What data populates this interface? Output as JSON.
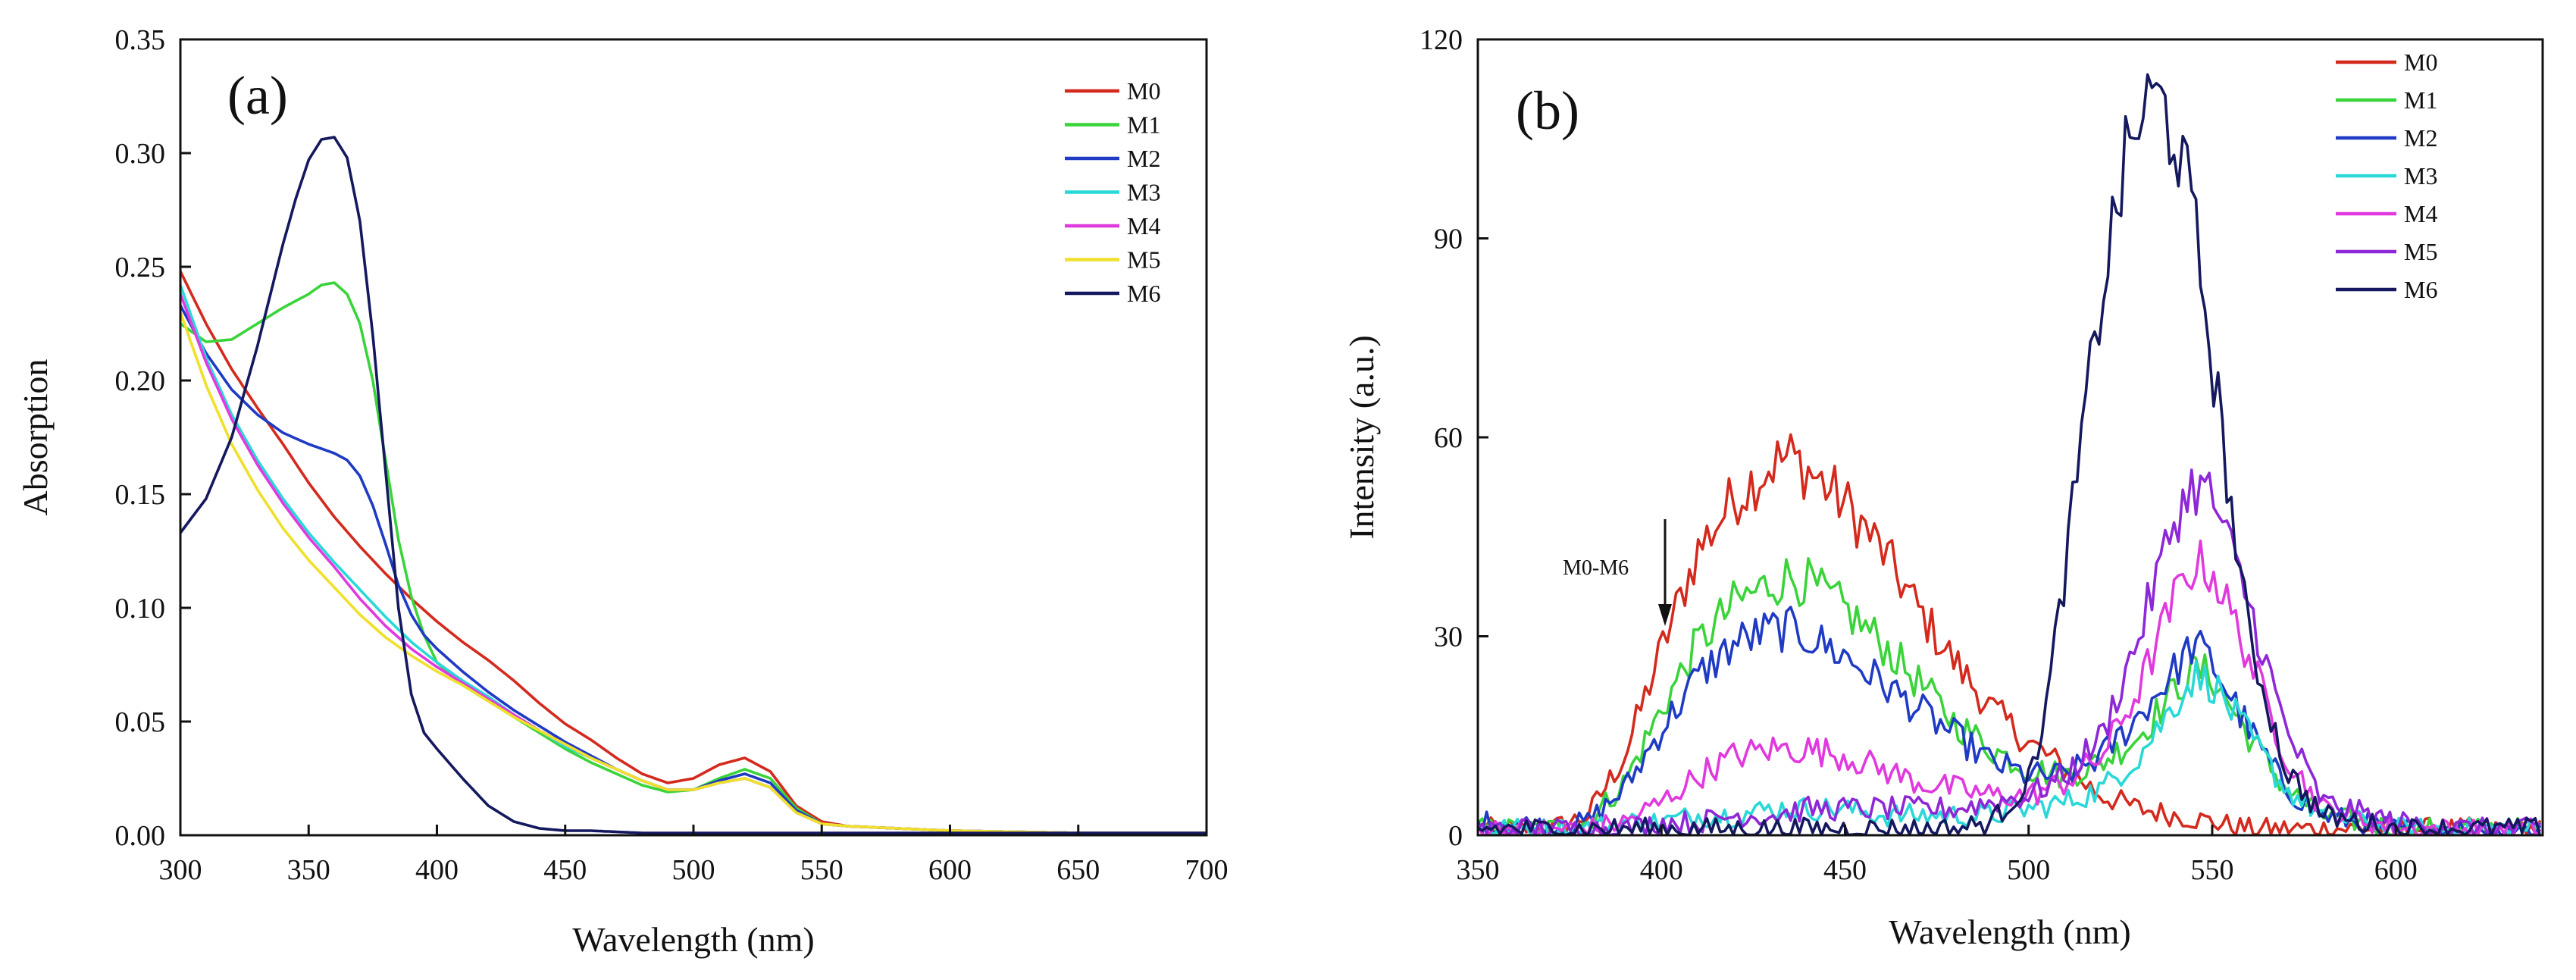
{
  "chart_data": [
    {
      "panel": "(a)",
      "type": "line",
      "title": "",
      "xlabel": "Wavelength (nm)",
      "ylabel": "Absorption",
      "xlim": [
        300,
        700
      ],
      "ylim": [
        0,
        0.35
      ],
      "xticks": [
        "300",
        "350",
        "400",
        "450",
        "500",
        "550",
        "600",
        "650",
        "700"
      ],
      "yticks": [
        "0.00",
        "0.05",
        "0.10",
        "0.15",
        "0.20",
        "0.25",
        "0.30",
        "0.35"
      ],
      "legend": "top-right",
      "grid": false,
      "series": [
        {
          "name": "M0",
          "color": "#d42a1e",
          "x": [
            300,
            310,
            320,
            330,
            340,
            350,
            360,
            370,
            380,
            390,
            400,
            410,
            420,
            430,
            440,
            450,
            460,
            470,
            480,
            490,
            500,
            510,
            520,
            530,
            540,
            550,
            560,
            580,
            600,
            650,
            700
          ],
          "y": [
            0.248,
            0.225,
            0.205,
            0.188,
            0.172,
            0.155,
            0.14,
            0.127,
            0.115,
            0.104,
            0.094,
            0.085,
            0.077,
            0.068,
            0.058,
            0.049,
            0.042,
            0.034,
            0.027,
            0.023,
            0.025,
            0.031,
            0.034,
            0.028,
            0.013,
            0.006,
            0.004,
            0.003,
            0.002,
            0.001,
            0.001
          ]
        },
        {
          "name": "M1",
          "color": "#3ad43a",
          "x": [
            300,
            310,
            320,
            330,
            340,
            350,
            355,
            360,
            365,
            370,
            375,
            380,
            385,
            390,
            395,
            400,
            410,
            420,
            430,
            440,
            450,
            460,
            470,
            480,
            490,
            500,
            510,
            520,
            530,
            540,
            550,
            560,
            580,
            600,
            650,
            700
          ],
          "y": [
            0.225,
            0.217,
            0.218,
            0.225,
            0.232,
            0.238,
            0.242,
            0.243,
            0.238,
            0.225,
            0.2,
            0.165,
            0.13,
            0.105,
            0.088,
            0.076,
            0.066,
            0.059,
            0.052,
            0.045,
            0.038,
            0.032,
            0.027,
            0.022,
            0.019,
            0.02,
            0.025,
            0.029,
            0.025,
            0.012,
            0.005,
            0.004,
            0.003,
            0.002,
            0.001,
            0.001
          ]
        },
        {
          "name": "M2",
          "color": "#1f3bc4",
          "x": [
            300,
            310,
            320,
            330,
            340,
            350,
            360,
            365,
            370,
            375,
            380,
            385,
            390,
            395,
            400,
            410,
            420,
            430,
            440,
            450,
            460,
            470,
            480,
            490,
            500,
            510,
            520,
            530,
            540,
            550,
            560,
            580,
            600,
            650,
            700
          ],
          "y": [
            0.233,
            0.212,
            0.196,
            0.185,
            0.177,
            0.172,
            0.168,
            0.165,
            0.158,
            0.145,
            0.128,
            0.11,
            0.097,
            0.088,
            0.082,
            0.072,
            0.063,
            0.055,
            0.048,
            0.041,
            0.035,
            0.029,
            0.024,
            0.02,
            0.02,
            0.024,
            0.027,
            0.023,
            0.011,
            0.005,
            0.004,
            0.003,
            0.002,
            0.001,
            0.001
          ]
        },
        {
          "name": "M3",
          "color": "#2ad8d8",
          "x": [
            300,
            310,
            320,
            330,
            340,
            350,
            360,
            370,
            380,
            390,
            400,
            410,
            420,
            430,
            440,
            450,
            460,
            470,
            480,
            490,
            500,
            510,
            520,
            530,
            540,
            550,
            560,
            580,
            600,
            650,
            700
          ],
          "y": [
            0.242,
            0.21,
            0.185,
            0.165,
            0.148,
            0.133,
            0.12,
            0.108,
            0.096,
            0.085,
            0.076,
            0.068,
            0.061,
            0.053,
            0.046,
            0.039,
            0.034,
            0.029,
            0.024,
            0.02,
            0.02,
            0.023,
            0.025,
            0.021,
            0.01,
            0.005,
            0.004,
            0.003,
            0.002,
            0.001,
            0.001
          ]
        },
        {
          "name": "M4",
          "color": "#e03adf",
          "x": [
            300,
            310,
            320,
            330,
            340,
            350,
            360,
            370,
            380,
            390,
            400,
            410,
            420,
            430,
            440,
            450,
            460,
            470,
            480,
            490,
            500,
            510,
            520,
            530,
            540,
            550,
            560,
            580,
            600,
            650,
            700
          ],
          "y": [
            0.238,
            0.208,
            0.183,
            0.163,
            0.146,
            0.131,
            0.118,
            0.104,
            0.092,
            0.082,
            0.074,
            0.067,
            0.06,
            0.053,
            0.046,
            0.04,
            0.034,
            0.029,
            0.024,
            0.02,
            0.02,
            0.023,
            0.025,
            0.021,
            0.01,
            0.005,
            0.004,
            0.003,
            0.002,
            0.001,
            0.001
          ]
        },
        {
          "name": "M5",
          "color": "#f0e02a",
          "x": [
            300,
            310,
            320,
            330,
            340,
            350,
            360,
            370,
            380,
            390,
            400,
            410,
            420,
            430,
            440,
            450,
            460,
            470,
            480,
            490,
            500,
            510,
            520,
            530,
            540,
            550,
            560,
            580,
            600,
            650,
            700
          ],
          "y": [
            0.23,
            0.198,
            0.172,
            0.152,
            0.135,
            0.121,
            0.109,
            0.097,
            0.087,
            0.079,
            0.072,
            0.066,
            0.059,
            0.052,
            0.046,
            0.04,
            0.034,
            0.029,
            0.024,
            0.02,
            0.02,
            0.023,
            0.025,
            0.021,
            0.01,
            0.005,
            0.004,
            0.003,
            0.002,
            0.001,
            0.001
          ]
        },
        {
          "name": "M6",
          "color": "#14185e",
          "x": [
            300,
            310,
            320,
            330,
            340,
            345,
            350,
            355,
            360,
            365,
            370,
            375,
            380,
            385,
            390,
            395,
            400,
            410,
            420,
            430,
            440,
            450,
            460,
            480,
            500,
            550,
            600,
            650,
            700
          ],
          "y": [
            0.133,
            0.148,
            0.175,
            0.215,
            0.26,
            0.28,
            0.297,
            0.306,
            0.307,
            0.298,
            0.27,
            0.22,
            0.16,
            0.1,
            0.062,
            0.045,
            0.038,
            0.025,
            0.013,
            0.006,
            0.003,
            0.002,
            0.002,
            0.001,
            0.001,
            0.001,
            0.001,
            0.001,
            0.001
          ]
        }
      ]
    },
    {
      "panel": "(b)",
      "type": "line",
      "title": "",
      "xlabel": "Wavelength (nm)",
      "ylabel": "Intensity (a.u.)",
      "xlim": [
        350,
        640
      ],
      "ylim": [
        0,
        120
      ],
      "xticks": [
        "350",
        "400",
        "450",
        "500",
        "550",
        "600"
      ],
      "yticks": [
        "0",
        "30",
        "60",
        "90",
        "120"
      ],
      "legend": "top-right",
      "grid": false,
      "annotation": "M0-M6",
      "series": [
        {
          "name": "M0",
          "color": "#d42a1e",
          "x": [
            350,
            360,
            370,
            380,
            390,
            400,
            410,
            420,
            430,
            435,
            440,
            450,
            460,
            470,
            480,
            490,
            500,
            510,
            520,
            530,
            540,
            550,
            560,
            570,
            580,
            600,
            620,
            640
          ],
          "y": [
            1,
            1,
            1,
            3,
            12,
            28,
            43,
            51,
            56,
            57,
            55,
            50,
            43,
            34,
            26,
            19,
            14,
            10,
            6,
            4,
            3,
            2,
            1,
            1,
            1,
            1,
            1,
            1
          ]
        },
        {
          "name": "M1",
          "color": "#3ad43a",
          "x": [
            350,
            360,
            370,
            380,
            390,
            400,
            410,
            420,
            430,
            435,
            440,
            450,
            460,
            470,
            480,
            490,
            500,
            510,
            520,
            530,
            540,
            545,
            550,
            560,
            570,
            580,
            600,
            620,
            640
          ],
          "y": [
            1,
            1,
            1,
            2,
            8,
            19,
            29,
            35,
            38,
            39,
            38,
            34,
            29,
            23,
            17,
            13,
            10,
            9,
            11,
            15,
            22,
            25,
            24,
            15,
            7,
            3,
            1,
            1,
            1
          ]
        },
        {
          "name": "M2",
          "color": "#1f3bc4",
          "x": [
            350,
            360,
            370,
            380,
            390,
            400,
            410,
            420,
            430,
            435,
            440,
            450,
            460,
            470,
            480,
            490,
            500,
            510,
            520,
            530,
            540,
            545,
            550,
            560,
            570,
            580,
            600,
            620,
            640
          ],
          "y": [
            2,
            2,
            1,
            2,
            7,
            16,
            24,
            29,
            31,
            31,
            30,
            27,
            23,
            19,
            15,
            11,
            9,
            9,
            12,
            18,
            25,
            29,
            26,
            16,
            7,
            3,
            1,
            1,
            1
          ]
        },
        {
          "name": "M3",
          "color": "#2ad8d8",
          "x": [
            350,
            360,
            370,
            380,
            390,
            400,
            410,
            420,
            430,
            440,
            450,
            460,
            470,
            480,
            490,
            500,
            510,
            520,
            530,
            540,
            545,
            550,
            560,
            570,
            580,
            600,
            620,
            640
          ],
          "y": [
            1,
            1,
            1,
            1,
            2,
            2,
            3,
            3,
            4,
            4,
            4,
            3,
            3,
            3,
            3,
            4,
            5,
            7,
            12,
            20,
            24,
            23,
            15,
            7,
            3,
            1,
            1,
            1
          ]
        },
        {
          "name": "M4",
          "color": "#e03adf",
          "x": [
            350,
            360,
            370,
            380,
            390,
            400,
            410,
            420,
            430,
            440,
            450,
            460,
            470,
            480,
            490,
            500,
            510,
            520,
            530,
            540,
            545,
            550,
            560,
            570,
            580,
            600,
            620,
            640
          ],
          "y": [
            1,
            1,
            1,
            1,
            2,
            5,
            9,
            12,
            13,
            13,
            12,
            10,
            8,
            7,
            6,
            6,
            8,
            12,
            22,
            36,
            41,
            40,
            27,
            12,
            4,
            1,
            1,
            1
          ]
        },
        {
          "name": "M5",
          "color": "#8e28d6",
          "x": [
            350,
            360,
            370,
            380,
            390,
            400,
            410,
            420,
            430,
            440,
            450,
            460,
            470,
            480,
            490,
            500,
            510,
            520,
            530,
            540,
            545,
            550,
            560,
            570,
            580,
            600,
            620,
            640
          ],
          "y": [
            1,
            1,
            1,
            1,
            1,
            2,
            2,
            3,
            3,
            4,
            4,
            4,
            4,
            4,
            5,
            6,
            9,
            15,
            30,
            48,
            53,
            51,
            35,
            16,
            5,
            2,
            1,
            1
          ]
        },
        {
          "name": "M6",
          "color": "#14185e",
          "x": [
            350,
            360,
            370,
            380,
            390,
            400,
            410,
            420,
            430,
            440,
            450,
            460,
            470,
            480,
            490,
            500,
            505,
            510,
            515,
            520,
            525,
            530,
            535,
            540,
            545,
            550,
            555,
            560,
            570,
            580,
            600,
            620,
            640
          ],
          "y": [
            1,
            1,
            1,
            1,
            1,
            1,
            1,
            1,
            1,
            1,
            1,
            1,
            1,
            1,
            2,
            8,
            20,
            40,
            62,
            82,
            98,
            108,
            111,
            106,
            92,
            72,
            50,
            30,
            10,
            3,
            1,
            1,
            1
          ]
        }
      ]
    }
  ]
}
